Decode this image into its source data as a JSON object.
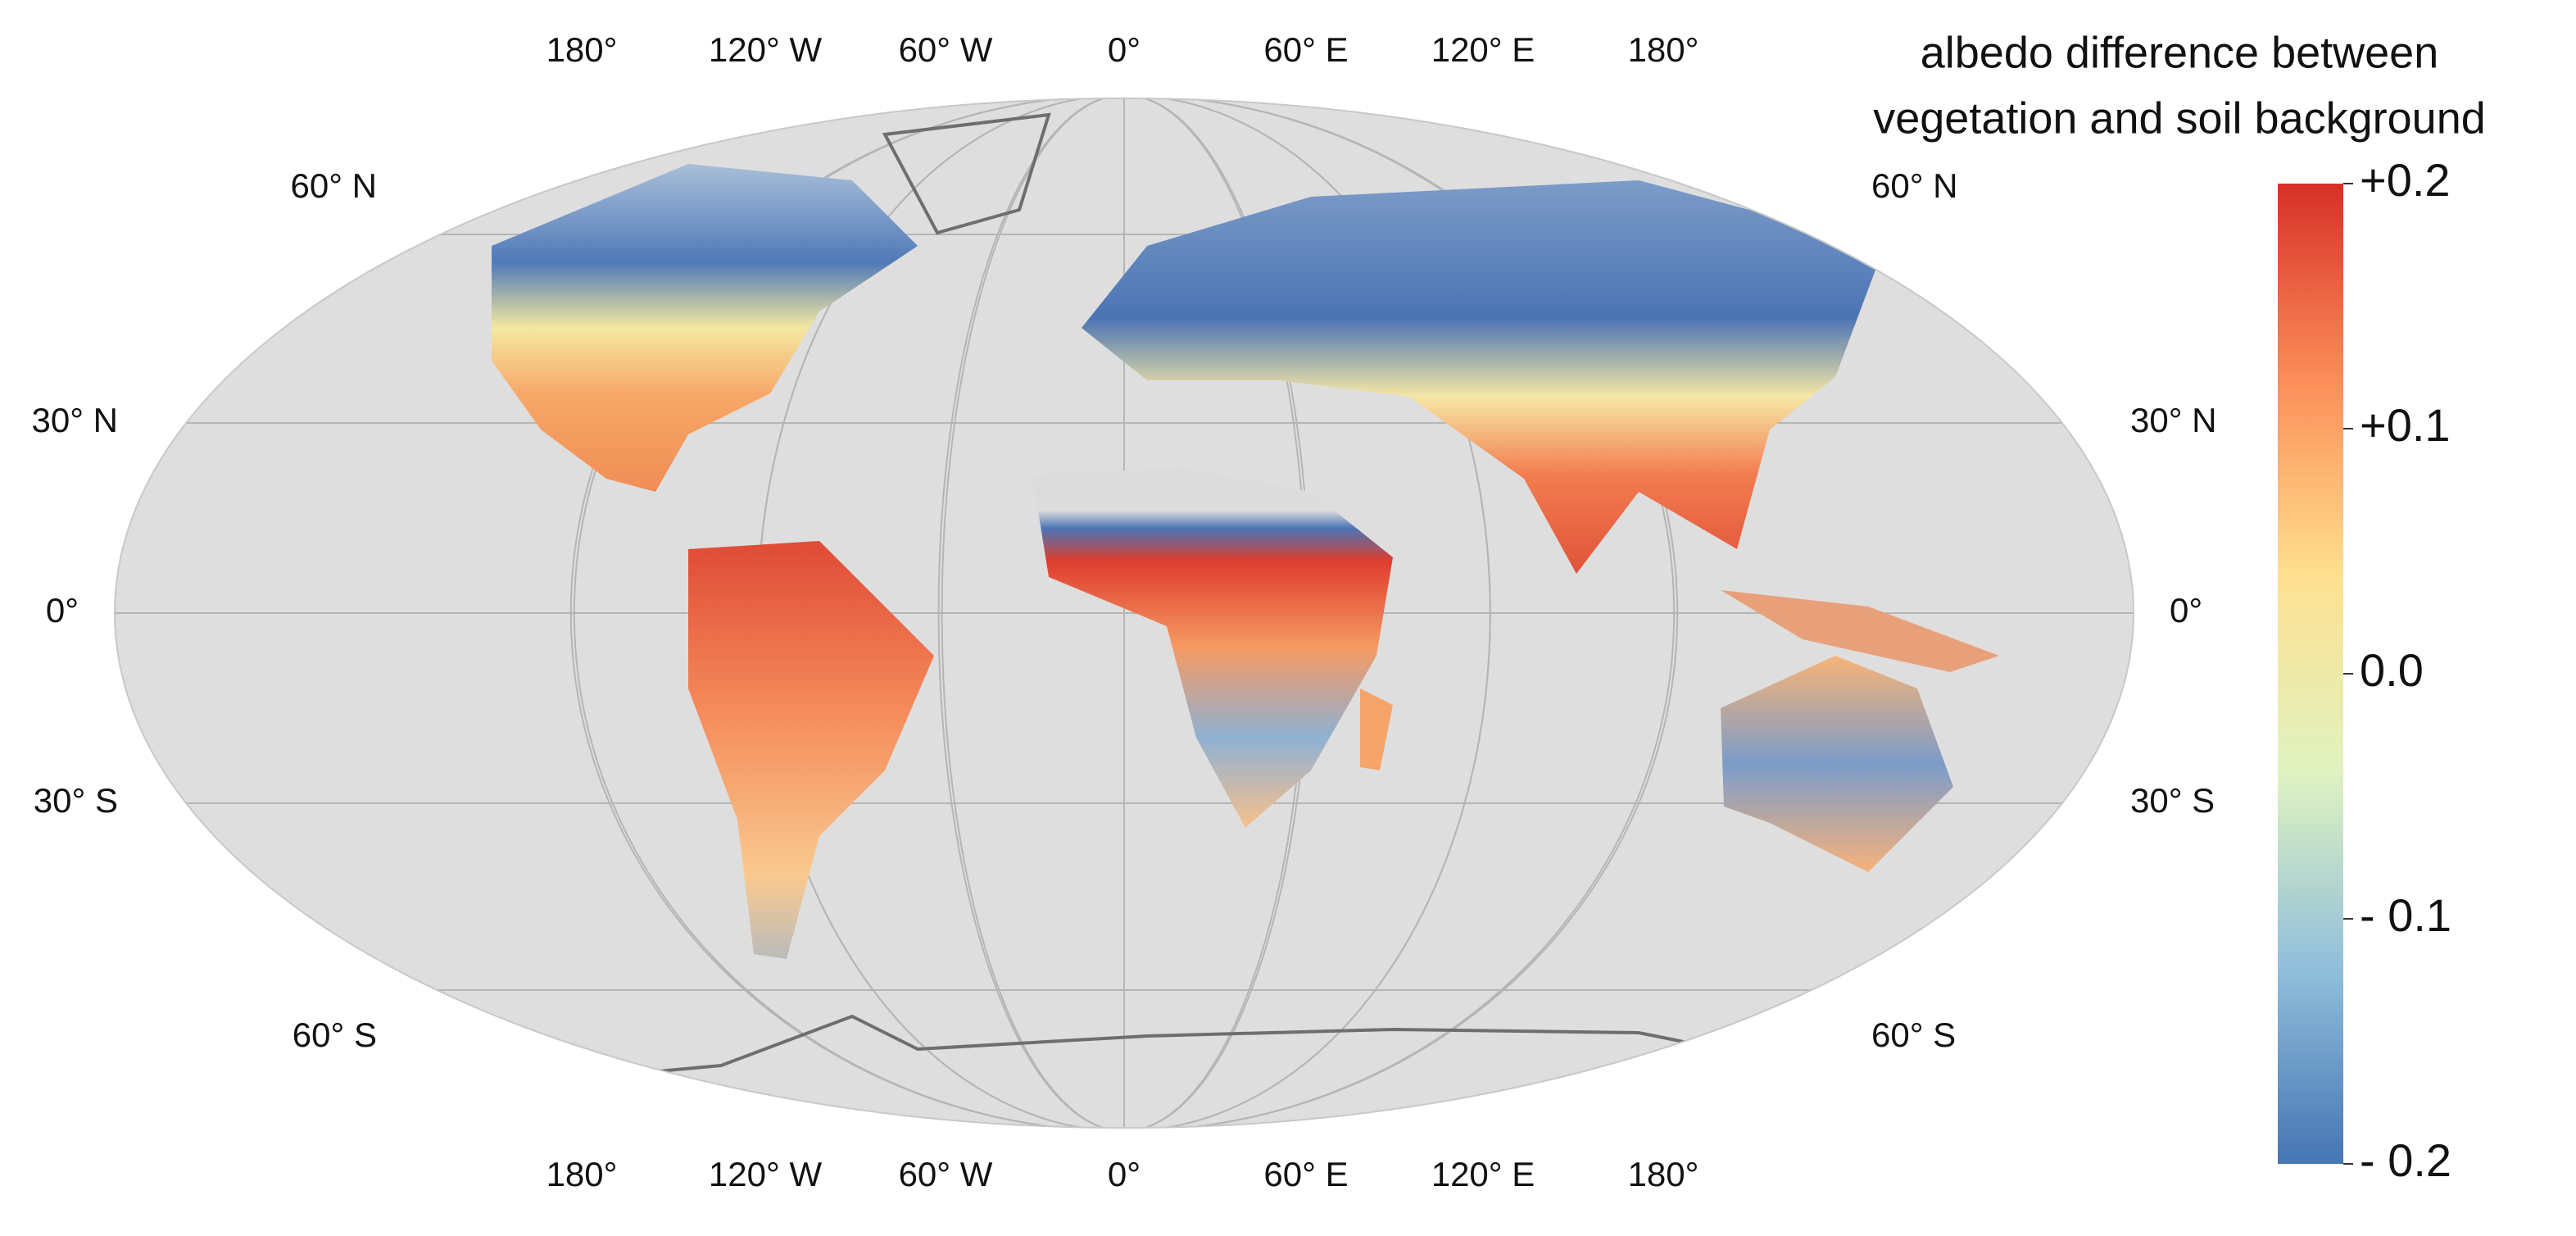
{
  "map": {
    "lon_labels": [
      "180°",
      "120° W",
      "60° W",
      "0°",
      "60° E",
      "120° E",
      "180°"
    ],
    "lat_labels": [
      "60° N",
      "30° N",
      "0°",
      "30° S",
      "60° S"
    ]
  },
  "colorbar": {
    "title": [
      "albedo difference between",
      "vegetation and soil background"
    ],
    "range": [
      -0.2,
      0.2
    ],
    "ticks": [
      {
        "value": 0.2,
        "label": "+0.2"
      },
      {
        "value": 0.1,
        "label": "+0.1"
      },
      {
        "value": 0,
        "label": "0.0"
      },
      {
        "value": -0.1,
        "label": "- 0.1"
      },
      {
        "value": -0.2,
        "label": "- 0.2"
      }
    ],
    "colors": [
      "#4575b4",
      "#91bfdb",
      "#e0f3c0",
      "#fee090",
      "#fc8d59",
      "#d73027"
    ]
  }
}
